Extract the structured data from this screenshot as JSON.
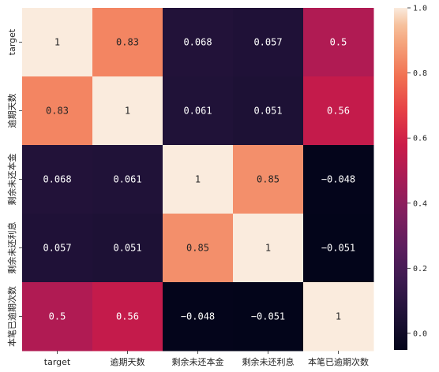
{
  "chart_data": {
    "type": "heatmap",
    "title": "",
    "xlabel": "",
    "ylabel": "",
    "x_categories": [
      "target",
      "逾期天数",
      "剩余未还本金",
      "剩余未还利息",
      "本笔已逾期次数"
    ],
    "y_categories": [
      "target",
      "逾期天数",
      "剩余未还本金",
      "剩余未还利息",
      "本笔已逾期次数"
    ],
    "values": [
      [
        1,
        0.83,
        0.068,
        0.057,
        0.5
      ],
      [
        0.83,
        1,
        0.061,
        0.051,
        0.56
      ],
      [
        0.068,
        0.061,
        1,
        0.85,
        -0.048
      ],
      [
        0.057,
        0.051,
        0.85,
        1,
        -0.051
      ],
      [
        0.5,
        0.56,
        -0.048,
        -0.051,
        1
      ]
    ],
    "cell_labels": [
      [
        "1",
        "0.83",
        "0.068",
        "0.057",
        "0.5"
      ],
      [
        "0.83",
        "1",
        "0.061",
        "0.051",
        "0.56"
      ],
      [
        "0.068",
        "0.061",
        "1",
        "0.85",
        "−0.048"
      ],
      [
        "0.057",
        "0.051",
        "0.85",
        "1",
        "−0.051"
      ],
      [
        "0.5",
        "0.56",
        "−0.048",
        "−0.051",
        "1"
      ]
    ],
    "colorbar": {
      "min": -0.051,
      "max": 1.0,
      "ticks": [
        0.0,
        0.2,
        0.4,
        0.6,
        0.8,
        1.0
      ],
      "tick_labels": [
        "0.0",
        "0.2",
        "0.4",
        "0.6",
        "0.8",
        "1.0"
      ],
      "colormap": "rocket",
      "placement": "right"
    }
  }
}
